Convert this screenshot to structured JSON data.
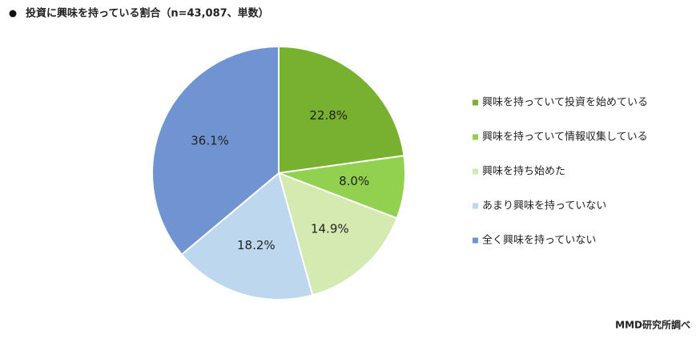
{
  "chart_data": {
    "type": "pie",
    "title": "投資に興味を持っている割合（n=43,087、単数）",
    "categories": [
      "興味を持っていて投資を始めている",
      "興味を持っていて情報収集している",
      "興味を持ち始めた",
      "あまり興味を持っていない",
      "全く興味を持っていない"
    ],
    "values": [
      22.8,
      8.0,
      14.9,
      18.2,
      36.1
    ],
    "value_labels": [
      "22.8%",
      "8.0%",
      "14.9%",
      "18.2%",
      "36.1%"
    ],
    "colors": [
      "#77b12f",
      "#92d050",
      "#d4eab0",
      "#bdd7ee",
      "#7094d1"
    ],
    "legend": "right",
    "source": "MMD研究所調べ"
  }
}
